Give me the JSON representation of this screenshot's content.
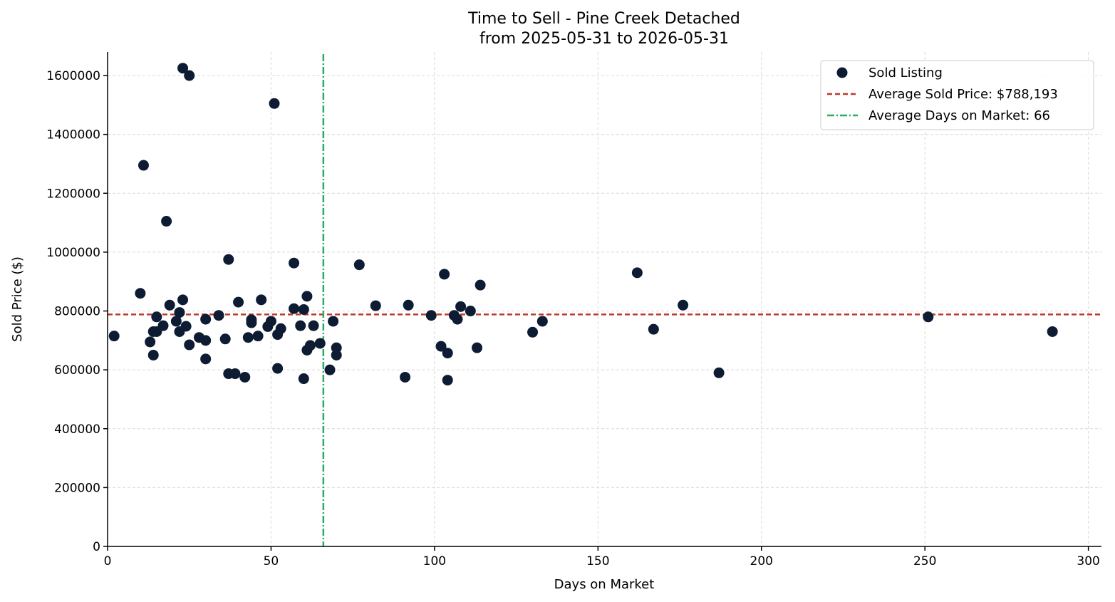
{
  "chart_data": {
    "type": "scatter",
    "title": "Time to Sell - Pine Creek Detached",
    "subtitle": "from 2025-05-31 to 2026-05-31",
    "xlabel": "Days on Market",
    "ylabel": "Sold Price ($)",
    "xlim": [
      0,
      304
    ],
    "ylim": [
      0,
      1680000
    ],
    "xticks": [
      0,
      50,
      100,
      150,
      200,
      250,
      300
    ],
    "yticks": [
      0,
      200000,
      400000,
      600000,
      800000,
      1000000,
      1200000,
      1400000,
      1600000
    ],
    "xtick_labels": [
      "0",
      "50",
      "100",
      "150",
      "200",
      "250",
      "300"
    ],
    "ytick_labels": [
      "0",
      "200000",
      "400000",
      "600000",
      "800000",
      "1000000",
      "1200000",
      "1400000",
      "1600000"
    ],
    "grid": true,
    "legend_position": "top-right",
    "series": [
      {
        "name": "Sold Listing",
        "color": "#0d1b33",
        "points": [
          [
            2,
            715000
          ],
          [
            10,
            860000
          ],
          [
            11,
            1295000
          ],
          [
            13,
            695000
          ],
          [
            14,
            730000
          ],
          [
            14,
            650000
          ],
          [
            15,
            780000
          ],
          [
            15,
            730000
          ],
          [
            17,
            750000
          ],
          [
            18,
            1105000
          ],
          [
            19,
            820000
          ],
          [
            21,
            765000
          ],
          [
            22,
            795000
          ],
          [
            22,
            730000
          ],
          [
            23,
            1625000
          ],
          [
            23,
            838000
          ],
          [
            24,
            748000
          ],
          [
            25,
            1600000
          ],
          [
            25,
            685000
          ],
          [
            28,
            710000
          ],
          [
            30,
            772000
          ],
          [
            30,
            700000
          ],
          [
            30,
            637000
          ],
          [
            34,
            785000
          ],
          [
            36,
            705000
          ],
          [
            37,
            975000
          ],
          [
            37,
            587000
          ],
          [
            39,
            587000
          ],
          [
            40,
            830000
          ],
          [
            42,
            575000
          ],
          [
            43,
            710000
          ],
          [
            44,
            770000
          ],
          [
            44,
            760000
          ],
          [
            46,
            715000
          ],
          [
            47,
            838000
          ],
          [
            49,
            747000
          ],
          [
            50,
            765000
          ],
          [
            51,
            1505000
          ],
          [
            52,
            605000
          ],
          [
            52,
            720000
          ],
          [
            53,
            740000
          ],
          [
            57,
            963000
          ],
          [
            57,
            808000
          ],
          [
            59,
            750000
          ],
          [
            60,
            805000
          ],
          [
            60,
            570000
          ],
          [
            61,
            850000
          ],
          [
            61,
            667000
          ],
          [
            62,
            683000
          ],
          [
            63,
            750000
          ],
          [
            65,
            690000
          ],
          [
            68,
            600000
          ],
          [
            69,
            765000
          ],
          [
            70,
            675000
          ],
          [
            70,
            650000
          ],
          [
            77,
            957000
          ],
          [
            82,
            818000
          ],
          [
            91,
            575000
          ],
          [
            92,
            820000
          ],
          [
            99,
            785000
          ],
          [
            102,
            680000
          ],
          [
            103,
            925000
          ],
          [
            104,
            657000
          ],
          [
            104,
            565000
          ],
          [
            106,
            785000
          ],
          [
            107,
            772000
          ],
          [
            108,
            815000
          ],
          [
            111,
            800000
          ],
          [
            113,
            675000
          ],
          [
            114,
            888000
          ],
          [
            130,
            728000
          ],
          [
            133,
            765000
          ],
          [
            162,
            930000
          ],
          [
            167,
            738000
          ],
          [
            176,
            820000
          ],
          [
            187,
            590000
          ],
          [
            251,
            780000
          ],
          [
            289,
            730000
          ]
        ]
      }
    ],
    "reference_lines": [
      {
        "name": "Average Sold Price: $788,193",
        "orientation": "horizontal",
        "value": 788193,
        "style": "dashed",
        "color": "#c0392b"
      },
      {
        "name": "Average Days on Market: 66",
        "orientation": "vertical",
        "value": 66,
        "style": "dashdot",
        "color": "#27ae60"
      }
    ]
  }
}
